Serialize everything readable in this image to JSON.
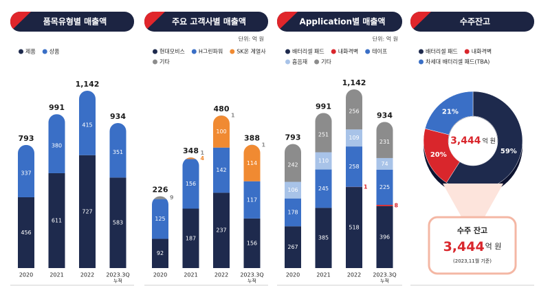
{
  "chart_data": [
    {
      "type": "bar",
      "stacked": true,
      "title": "품목유형별 매출액",
      "categories": [
        "2020",
        "2021",
        "2022",
        "2023.3Q"
      ],
      "category_notes": [
        null,
        null,
        null,
        "누적"
      ],
      "series": [
        {
          "name": "제품",
          "color": "#1e2a4d",
          "values": [
            456,
            611,
            727,
            583
          ]
        },
        {
          "name": "상품",
          "color": "#3a6fc6",
          "values": [
            337,
            380,
            415,
            351
          ]
        }
      ],
      "totals": [
        793,
        991,
        1142,
        934
      ],
      "total_labels": [
        "793",
        "991",
        "1,142",
        "934"
      ]
    },
    {
      "type": "bar",
      "stacked": true,
      "title": "주요 고객사별 매출액",
      "unit": "단위: 억 원",
      "categories": [
        "2020",
        "2021",
        "2022",
        "2023.3Q"
      ],
      "category_notes": [
        null,
        null,
        null,
        "누적"
      ],
      "series": [
        {
          "name": "현대모비스",
          "color": "#1e2a4d",
          "values": [
            92,
            187,
            237,
            156
          ]
        },
        {
          "name": "H그린파워",
          "color": "#3a6fc6",
          "values": [
            125,
            156,
            142,
            117
          ]
        },
        {
          "name": "SK온 계열사",
          "color": "#f08a32",
          "values": [
            null,
            4,
            100,
            114
          ]
        },
        {
          "name": "기타",
          "color": "#8c8c8c",
          "values": [
            9,
            1,
            1,
            1
          ]
        }
      ],
      "totals": [
        226,
        348,
        480,
        388
      ],
      "total_labels": [
        "226",
        "348",
        "480",
        "388"
      ]
    },
    {
      "type": "bar",
      "stacked": true,
      "title": "Application별 매출액",
      "unit": "단위: 억 원",
      "categories": [
        "2020",
        "2021",
        "2022",
        "2023.3Q"
      ],
      "category_notes": [
        null,
        null,
        null,
        "누적"
      ],
      "series": [
        {
          "name": "배터리셀 패드",
          "color": "#1e2a4d",
          "values": [
            267,
            385,
            518,
            396
          ]
        },
        {
          "name": "내화격벽",
          "color": "#d9262c",
          "values": [
            null,
            null,
            1,
            8
          ]
        },
        {
          "name": "테이프",
          "color": "#3a6fc6",
          "values": [
            178,
            245,
            258,
            225
          ]
        },
        {
          "name": "흡음재",
          "color": "#a8c3e8",
          "values": [
            106,
            110,
            109,
            74
          ]
        },
        {
          "name": "기타",
          "color": "#8c8c8c",
          "values": [
            242,
            251,
            256,
            231
          ]
        }
      ],
      "totals": [
        793,
        991,
        1142,
        934
      ],
      "total_labels": [
        "793",
        "991",
        "1,142",
        "934"
      ]
    },
    {
      "type": "donut",
      "title": "수주잔고",
      "categories": [
        "배터리셀 패드",
        "내화격벽",
        "차세대 배터리셀 패드(TBA)"
      ],
      "colors": [
        "#1e2a4d",
        "#d9262c",
        "#3a6fc6"
      ],
      "values": [
        59,
        20,
        21
      ],
      "value_labels": [
        "59%",
        "20%",
        "21%"
      ],
      "center_value": 3444,
      "center_value_label": "3,444",
      "center_unit": "억 원",
      "box_title": "수주 잔고",
      "box_value": 3444,
      "box_value_label": "3,444",
      "box_unit": "억 원",
      "box_note": "(2023,11월 기준)"
    }
  ]
}
